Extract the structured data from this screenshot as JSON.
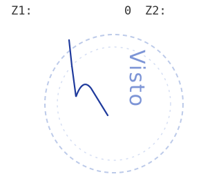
{
  "fields": {
    "z1_label": "Z1:",
    "z1_value": "0",
    "z2_label": "Z2:"
  },
  "stamp": {
    "text": "Visto"
  }
}
